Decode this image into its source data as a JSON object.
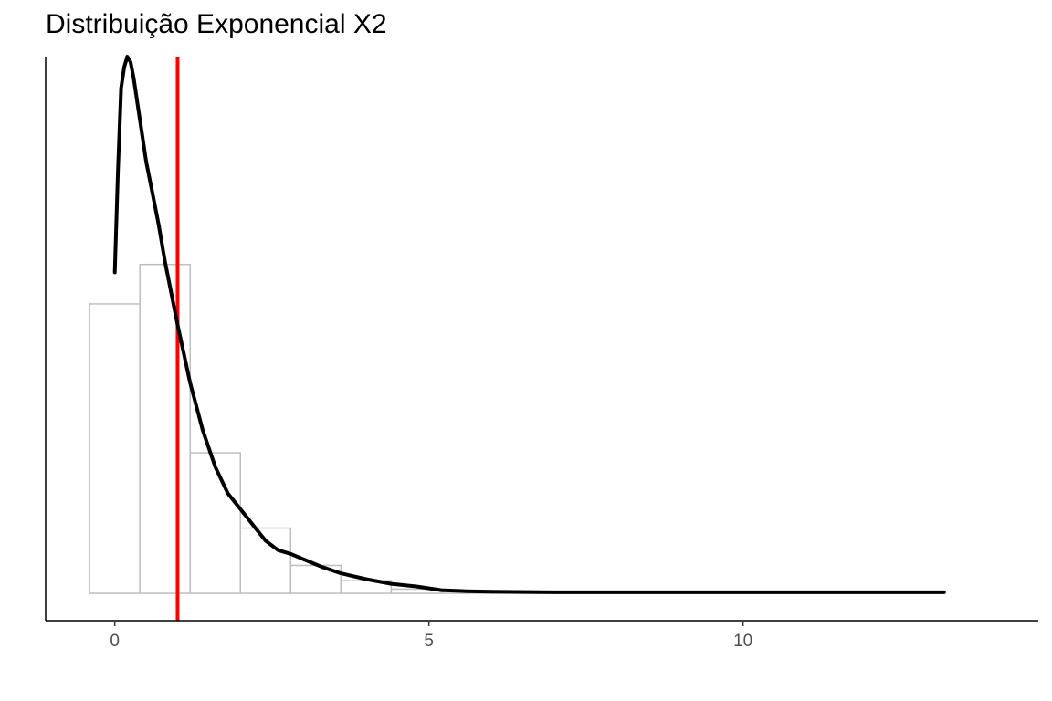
{
  "chart_data": {
    "type": "histogram",
    "title": "Distribuição Exponencial X2",
    "xlabel": "",
    "ylabel": "",
    "xlim": [
      -1.1,
      14.7
    ],
    "ylim": [
      -0.052,
      1.02
    ],
    "x_ticks": [
      0,
      5,
      10
    ],
    "y_ticks": [],
    "grid": false,
    "histogram": {
      "bins": [
        {
          "x0": -0.4,
          "x1": 0.4,
          "height": 0.55
        },
        {
          "x0": 0.4,
          "x1": 1.2,
          "height": 0.625
        },
        {
          "x0": 1.2,
          "x1": 2.0,
          "height": 0.267
        },
        {
          "x0": 2.0,
          "x1": 2.8,
          "height": 0.124
        },
        {
          "x0": 2.8,
          "x1": 3.6,
          "height": 0.053
        },
        {
          "x0": 3.6,
          "x1": 4.4,
          "height": 0.024
        },
        {
          "x0": 4.4,
          "x1": 5.2,
          "height": 0.008
        },
        {
          "x0": 5.2,
          "x1": 6.0,
          "height": 0.003
        },
        {
          "x0": 6.0,
          "x1": 6.8,
          "height": 0.001
        },
        {
          "x0": 6.8,
          "x1": 13.9,
          "height": 0.0
        }
      ],
      "fill": "#ffffff",
      "stroke": "#bebebe"
    },
    "density": {
      "x": [
        0.0,
        0.05,
        0.1,
        0.15,
        0.2,
        0.25,
        0.3,
        0.4,
        0.5,
        0.6,
        0.7,
        0.8,
        1.0,
        1.2,
        1.4,
        1.6,
        1.8,
        2.0,
        2.2,
        2.4,
        2.6,
        2.8,
        3.0,
        3.3,
        3.6,
        4.0,
        4.4,
        4.8,
        5.2,
        5.6,
        6.0,
        7.0,
        8.0,
        9.0,
        10.0,
        11.0,
        12.0,
        13.2
      ],
      "y": [
        0.61,
        0.8,
        0.96,
        1.0,
        1.02,
        1.01,
        0.98,
        0.9,
        0.82,
        0.76,
        0.7,
        0.63,
        0.51,
        0.4,
        0.31,
        0.24,
        0.19,
        0.16,
        0.13,
        0.1,
        0.082,
        0.075,
        0.065,
        0.05,
        0.038,
        0.027,
        0.018,
        0.013,
        0.006,
        0.004,
        0.003,
        0.002,
        0.002,
        0.002,
        0.002,
        0.002,
        0.002,
        0.002
      ],
      "color": "#000000"
    },
    "vline": {
      "x": 1.0,
      "color": "#ff0000"
    },
    "axis_color": "#000000",
    "tick_label_color": "#4d4d4d"
  }
}
